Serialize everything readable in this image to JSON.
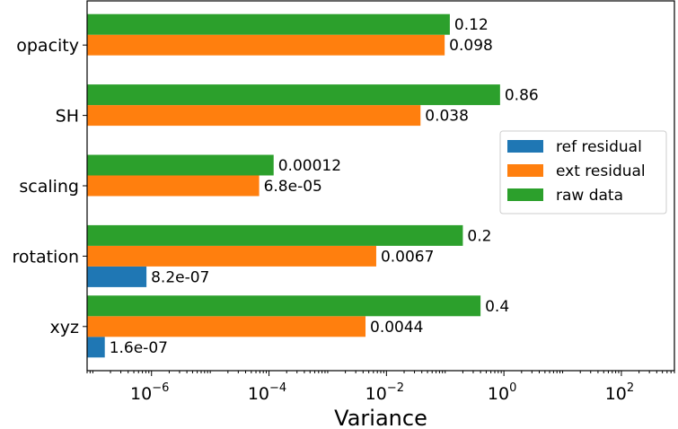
{
  "chart_data": {
    "type": "bar",
    "orientation": "horizontal",
    "xscale": "log",
    "xlabel": "Variance",
    "xlim": [
      8e-08,
      800
    ],
    "xticks": [
      {
        "value": 1e-06,
        "base": "10",
        "exp": "−6"
      },
      {
        "value": 0.0001,
        "base": "10",
        "exp": "−4"
      },
      {
        "value": 0.01,
        "base": "10",
        "exp": "−2"
      },
      {
        "value": 1,
        "base": "10",
        "exp": "0"
      },
      {
        "value": 100,
        "base": "10",
        "exp": "2"
      }
    ],
    "categories": [
      "xyz",
      "rotation",
      "scaling",
      "SH",
      "opacity"
    ],
    "series": [
      {
        "name": "ref residual",
        "color": "#1f77b4",
        "values": [
          1.6e-07,
          8.2e-07,
          null,
          null,
          null
        ],
        "labels": [
          "1.6e-07",
          "8.2e-07",
          null,
          null,
          null
        ]
      },
      {
        "name": "ext residual",
        "color": "#ff7f0e",
        "values": [
          0.0044,
          0.0067,
          6.8e-05,
          0.038,
          0.098
        ],
        "labels": [
          "0.0044",
          "0.0067",
          "6.8e-05",
          "0.038",
          "0.098"
        ]
      },
      {
        "name": "raw data",
        "color": "#2ca02c",
        "values": [
          0.4,
          0.2,
          0.00012,
          0.86,
          0.12
        ],
        "labels": [
          "0.4",
          "0.2",
          "0.00012",
          "0.86",
          "0.12"
        ]
      }
    ],
    "legend_position": "center-right",
    "grid": false
  }
}
